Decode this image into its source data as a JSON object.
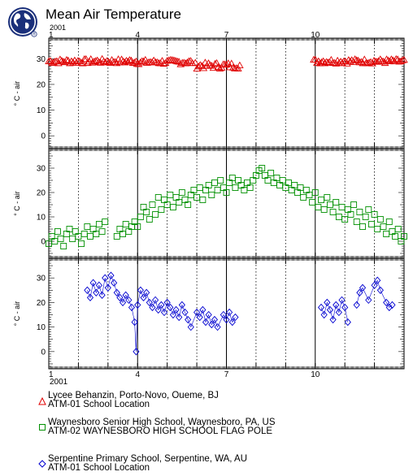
{
  "header": {
    "title": "Mean Air Temperature",
    "year_top": "2001",
    "year_bottom": "2001"
  },
  "colors": {
    "series1": "#e00000",
    "series2": "#009000",
    "series3": "#0000d0"
  },
  "chart_data": {
    "type": "scatter",
    "x_axis": {
      "unit": "month",
      "range": [
        1,
        13
      ],
      "tick_labels": [
        "1",
        "4",
        "7",
        "10"
      ],
      "minor_ticks": "days",
      "dotted_gridlines_at_months": [
        2,
        3,
        5,
        6,
        8,
        9,
        11,
        12
      ],
      "solid_gridlines_at_months": [
        4,
        7,
        10
      ]
    },
    "panels": [
      {
        "series_name": "Lycee Behanzin, Porto-Novo, Oueme, BJ",
        "site": "ATM-01 School Location",
        "marker": "triangle",
        "color": "#e00000",
        "ylabel": "° C - air",
        "ylim": [
          -5,
          38
        ],
        "y_ticks": [
          0,
          10,
          20,
          30
        ],
        "segments": [
          {
            "x_start": 1.0,
            "x_end": 3.95,
            "y_mean": 29.0,
            "y_amp": 0.9,
            "n": 55
          },
          {
            "x_start": 3.98,
            "x_end": 5.85,
            "y_mean": 28.7,
            "y_amp": 0.9,
            "n": 34
          },
          {
            "x_start": 5.95,
            "x_end": 7.45,
            "y_mean": 27.3,
            "y_amp": 1.2,
            "n": 28
          },
          {
            "x_start": 9.95,
            "x_end": 13.0,
            "y_mean": 29.0,
            "y_amp": 0.9,
            "n": 58
          }
        ]
      },
      {
        "series_name": "Waynesboro Senior High School, Waynesboro, PA, US",
        "site": "ATM-02 WAYNESBORO HIGH SCHOOL FLAG POLE",
        "marker": "square",
        "color": "#009000",
        "ylabel": "° C - air",
        "ylim": [
          -7,
          38
        ],
        "y_ticks": [
          0,
          10,
          20,
          30
        ],
        "points": [
          [
            1.0,
            -1
          ],
          [
            1.1,
            2
          ],
          [
            1.2,
            0
          ],
          [
            1.3,
            4
          ],
          [
            1.4,
            1
          ],
          [
            1.5,
            -2
          ],
          [
            1.6,
            3
          ],
          [
            1.7,
            5
          ],
          [
            1.8,
            1
          ],
          [
            1.9,
            4
          ],
          [
            2.0,
            2
          ],
          [
            2.1,
            -1
          ],
          [
            2.2,
            3
          ],
          [
            2.3,
            6
          ],
          [
            2.4,
            2
          ],
          [
            2.5,
            5
          ],
          [
            2.6,
            3
          ],
          [
            2.7,
            7
          ],
          [
            2.8,
            4
          ],
          [
            2.9,
            8
          ],
          [
            3.3,
            2
          ],
          [
            3.4,
            5
          ],
          [
            3.5,
            3
          ],
          [
            3.6,
            7
          ],
          [
            3.7,
            4
          ],
          [
            3.8,
            6
          ],
          [
            3.9,
            8
          ],
          [
            4.0,
            6
          ],
          [
            4.1,
            10
          ],
          [
            4.2,
            14
          ],
          [
            4.3,
            12
          ],
          [
            4.4,
            9
          ],
          [
            4.5,
            15
          ],
          [
            4.6,
            11
          ],
          [
            4.7,
            18
          ],
          [
            4.8,
            13
          ],
          [
            4.9,
            17
          ],
          [
            5.0,
            15
          ],
          [
            5.1,
            19
          ],
          [
            5.2,
            14
          ],
          [
            5.3,
            18
          ],
          [
            5.4,
            16
          ],
          [
            5.5,
            20
          ],
          [
            5.6,
            17
          ],
          [
            5.7,
            15
          ],
          [
            5.8,
            19
          ],
          [
            5.9,
            21
          ],
          [
            6.0,
            18
          ],
          [
            6.1,
            22
          ],
          [
            6.2,
            17
          ],
          [
            6.3,
            21
          ],
          [
            6.4,
            23
          ],
          [
            6.5,
            19
          ],
          [
            6.6,
            24
          ],
          [
            6.7,
            21
          ],
          [
            6.8,
            25
          ],
          [
            6.9,
            22
          ],
          [
            7.0,
            20
          ],
          [
            7.1,
            24
          ],
          [
            7.2,
            26
          ],
          [
            7.3,
            22
          ],
          [
            7.4,
            25
          ],
          [
            7.5,
            23
          ],
          [
            7.6,
            21
          ],
          [
            7.7,
            24
          ],
          [
            7.8,
            22
          ],
          [
            7.9,
            25
          ],
          [
            8.0,
            27
          ],
          [
            8.1,
            29
          ],
          [
            8.2,
            30
          ],
          [
            8.3,
            27
          ],
          [
            8.4,
            25
          ],
          [
            8.5,
            28
          ],
          [
            8.6,
            24
          ],
          [
            8.7,
            26
          ],
          [
            8.8,
            23
          ],
          [
            8.9,
            25
          ],
          [
            9.0,
            22
          ],
          [
            9.1,
            24
          ],
          [
            9.2,
            21
          ],
          [
            9.3,
            23
          ],
          [
            9.4,
            20
          ],
          [
            9.5,
            22
          ],
          [
            9.6,
            18
          ],
          [
            9.7,
            21
          ],
          [
            9.8,
            19
          ],
          [
            9.9,
            16
          ],
          [
            10.0,
            20
          ],
          [
            10.1,
            14
          ],
          [
            10.2,
            17
          ],
          [
            10.3,
            13
          ],
          [
            10.4,
            18
          ],
          [
            10.5,
            15
          ],
          [
            10.6,
            12
          ],
          [
            10.7,
            16
          ],
          [
            10.8,
            10
          ],
          [
            10.9,
            14
          ],
          [
            11.0,
            9
          ],
          [
            11.1,
            13
          ],
          [
            11.2,
            11
          ],
          [
            11.3,
            15
          ],
          [
            11.4,
            8
          ],
          [
            11.5,
            12
          ],
          [
            11.6,
            6
          ],
          [
            11.7,
            10
          ],
          [
            11.8,
            13
          ],
          [
            11.9,
            7
          ],
          [
            12.0,
            11
          ],
          [
            12.1,
            5
          ],
          [
            12.2,
            9
          ],
          [
            12.3,
            6
          ],
          [
            12.4,
            3
          ],
          [
            12.5,
            8
          ],
          [
            12.6,
            4
          ],
          [
            12.7,
            2
          ],
          [
            12.8,
            5
          ],
          [
            12.9,
            0
          ],
          [
            13.0,
            2
          ]
        ]
      },
      {
        "series_name": "Serpentine Primary School, Serpentine, WA, AU",
        "site": "ATM-01 School Location",
        "marker": "diamond",
        "color": "#0000d0",
        "ylabel": "° C - air",
        "ylim": [
          -7,
          38
        ],
        "y_ticks": [
          0,
          10,
          20,
          30
        ],
        "points": [
          [
            2.3,
            25
          ],
          [
            2.4,
            22
          ],
          [
            2.5,
            28
          ],
          [
            2.6,
            24
          ],
          [
            2.7,
            27
          ],
          [
            2.8,
            23
          ],
          [
            2.9,
            30
          ],
          [
            3.0,
            26
          ],
          [
            3.1,
            31
          ],
          [
            3.2,
            28
          ],
          [
            3.3,
            24
          ],
          [
            3.4,
            22
          ],
          [
            3.5,
            20
          ],
          [
            3.6,
            23
          ],
          [
            3.7,
            21
          ],
          [
            3.8,
            18
          ],
          [
            3.9,
            12
          ],
          [
            3.95,
            0
          ],
          [
            4.0,
            19
          ],
          [
            4.1,
            25
          ],
          [
            4.2,
            22
          ],
          [
            4.3,
            24
          ],
          [
            4.4,
            20
          ],
          [
            4.5,
            18
          ],
          [
            4.6,
            21
          ],
          [
            4.7,
            17
          ],
          [
            4.8,
            19
          ],
          [
            4.9,
            16
          ],
          [
            5.0,
            20
          ],
          [
            5.1,
            18
          ],
          [
            5.2,
            15
          ],
          [
            5.3,
            17
          ],
          [
            5.4,
            14
          ],
          [
            5.5,
            19
          ],
          [
            5.6,
            16
          ],
          [
            5.7,
            13
          ],
          [
            5.8,
            10
          ],
          [
            6.0,
            16
          ],
          [
            6.1,
            14
          ],
          [
            6.2,
            17
          ],
          [
            6.3,
            12
          ],
          [
            6.4,
            15
          ],
          [
            6.5,
            11
          ],
          [
            6.6,
            13
          ],
          [
            6.7,
            10
          ],
          [
            6.9,
            15
          ],
          [
            7.0,
            13
          ],
          [
            7.1,
            16
          ],
          [
            7.2,
            12
          ],
          [
            7.3,
            14
          ],
          [
            10.2,
            18
          ],
          [
            10.3,
            15
          ],
          [
            10.4,
            20
          ],
          [
            10.5,
            17
          ],
          [
            10.6,
            13
          ],
          [
            10.7,
            19
          ],
          [
            10.8,
            16
          ],
          [
            10.9,
            21
          ],
          [
            11.0,
            18
          ],
          [
            11.1,
            12
          ],
          [
            11.4,
            19
          ],
          [
            11.5,
            24
          ],
          [
            11.6,
            26
          ],
          [
            11.8,
            21
          ],
          [
            12.0,
            27
          ],
          [
            12.1,
            29
          ],
          [
            12.2,
            25
          ],
          [
            12.4,
            20
          ],
          [
            12.5,
            18
          ],
          [
            12.6,
            19
          ]
        ]
      }
    ],
    "legend": [
      {
        "name": "Lycee Behanzin, Porto-Novo, Oueme, BJ",
        "site": "ATM-01 School Location",
        "marker": "triangle",
        "color": "#e00000"
      },
      {
        "name": "Waynesboro Senior High School, Waynesboro, PA, US",
        "site": "ATM-02 WAYNESBORO HIGH SCHOOL FLAG POLE",
        "marker": "square",
        "color": "#009000"
      },
      {
        "name": "Serpentine Primary School, Serpentine, WA, AU",
        "site": "ATM-01 School Location",
        "marker": "diamond",
        "color": "#0000d0"
      }
    ]
  }
}
